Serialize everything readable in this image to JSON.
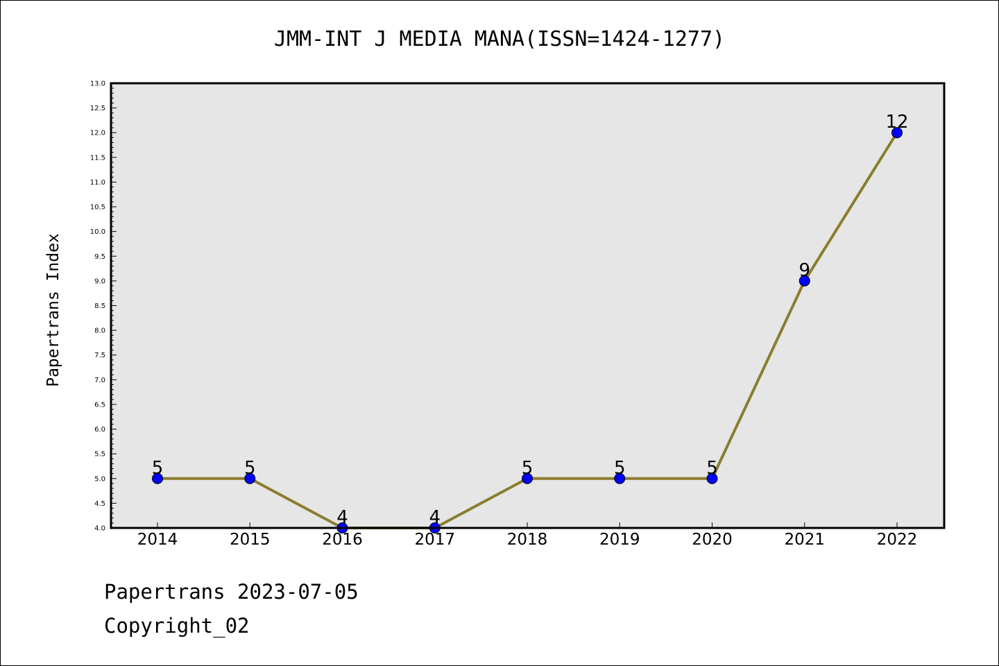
{
  "chart_data": {
    "type": "line",
    "title": "JMM-INT J MEDIA MANA(ISSN=1424-1277)",
    "xlabel": "",
    "ylabel": "Papertrans Index",
    "categories": [
      "2014",
      "2015",
      "2016",
      "2017",
      "2018",
      "2019",
      "2020",
      "2021",
      "2022"
    ],
    "series": [
      {
        "values": [
          5,
          5,
          4,
          4,
          5,
          5,
          5,
          9,
          12
        ],
        "data_labels": [
          "5",
          "5",
          "4",
          "4",
          "5",
          "5",
          "5",
          "9",
          "12"
        ]
      }
    ],
    "ylim": [
      4.0,
      13.0
    ],
    "yticks": [
      "4.0",
      "4.5",
      "5.0",
      "5.5",
      "6.0",
      "6.5",
      "7.0",
      "7.5",
      "8.0",
      "8.5",
      "9.0",
      "9.5",
      "10.0",
      "10.5",
      "11.0",
      "11.5",
      "12.0",
      "12.5",
      "13.0"
    ],
    "grid": false,
    "legend": "none",
    "colors": {
      "line": "#8b7d2e",
      "marker_fill": "#0000ff",
      "plot_background": "#e6e6e6"
    }
  },
  "footer": {
    "line1": "Papertrans 2023-07-05",
    "line2": "Copyright_02"
  }
}
